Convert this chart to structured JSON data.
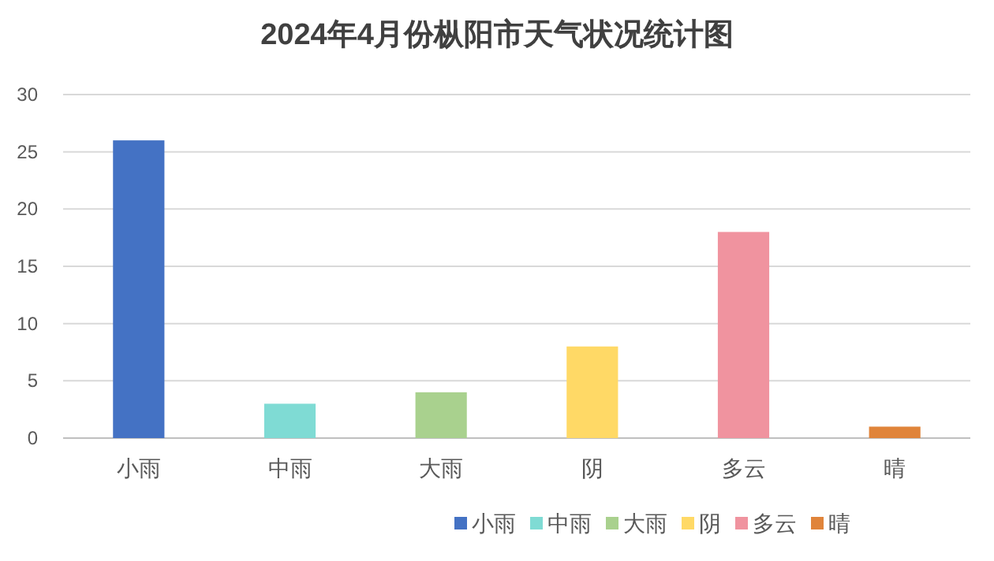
{
  "chart_data": {
    "type": "bar",
    "title": "2024年4月份枞阳市天气状况统计图",
    "categories": [
      "小雨",
      "中雨",
      "大雨",
      "阴",
      "多云",
      "晴"
    ],
    "series": [
      {
        "name": "小雨",
        "color": "#4472c4",
        "values": [
          26,
          null,
          null,
          null,
          null,
          null
        ]
      },
      {
        "name": "中雨",
        "color": "#7fdbd4",
        "values": [
          null,
          3,
          null,
          null,
          null,
          null
        ]
      },
      {
        "name": "大雨",
        "color": "#a9d18e",
        "values": [
          null,
          null,
          4,
          null,
          null,
          null
        ]
      },
      {
        "name": "阴",
        "color": "#ffd966",
        "values": [
          null,
          null,
          null,
          8,
          null,
          null
        ]
      },
      {
        "name": "多云",
        "color": "#f0939f",
        "values": [
          null,
          null,
          null,
          null,
          18,
          null
        ]
      },
      {
        "name": "晴",
        "color": "#e0843a",
        "values": [
          null,
          null,
          null,
          null,
          null,
          1
        ]
      }
    ],
    "ylim": [
      0,
      30
    ],
    "yticks": [
      0,
      5,
      10,
      15,
      20,
      25,
      30
    ],
    "grid": "y",
    "legend": "bottom"
  }
}
